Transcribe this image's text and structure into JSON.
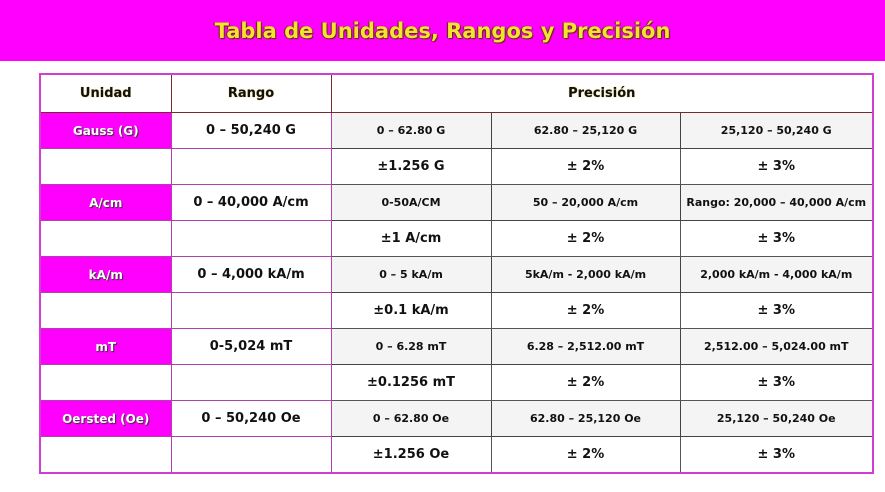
{
  "header": {
    "title": "Tabla de Unidades, Rangos y Precisión"
  },
  "table": {
    "columns": [
      "Unidad",
      "Rango",
      "Precisión"
    ],
    "units": [
      {
        "unit": "Gauss (G)",
        "range": "0 – 50,240 G",
        "ranges": [
          "0 – 62.80 G",
          "62.80 – 25,120 G",
          "25,120 – 50,240 G"
        ],
        "tolerances": [
          "±1.256 G",
          "± 2%",
          "± 3%"
        ]
      },
      {
        "unit": "A/cm",
        "range": "0 – 40,000 A/cm",
        "ranges": [
          "0-50A/CM",
          "50 – 20,000 A/cm",
          "Rango: 20,000 – 40,000 A/cm"
        ],
        "tolerances": [
          "±1 A/cm",
          "± 2%",
          "± 3%"
        ]
      },
      {
        "unit": "kA/m",
        "range": "0 – 4,000 kA/m",
        "ranges": [
          "0 – 5 kA/m",
          "5kA/m - 2,000 kA/m",
          "2,000 kA/m - 4,000 kA/m"
        ],
        "tolerances": [
          "±0.1 kA/m",
          "± 2%",
          "± 3%"
        ]
      },
      {
        "unit": "mT",
        "range": "0-5,024 mT",
        "ranges": [
          "0 – 6.28 mT",
          "6.28 – 2,512.00 mT",
          "2,512.00 – 5,024.00 mT"
        ],
        "tolerances": [
          "±0.1256 mT",
          "± 2%",
          "± 3%"
        ]
      },
      {
        "unit": "Oersted (Oe)",
        "range": "0 – 50,240 Oe",
        "ranges": [
          "0 – 62.80 Oe",
          "62.80 – 25,120 Oe",
          "25,120 – 50,240 Oe"
        ],
        "tolerances": [
          "±1.256 Oe",
          "± 2%",
          "± 3%"
        ]
      }
    ]
  }
}
